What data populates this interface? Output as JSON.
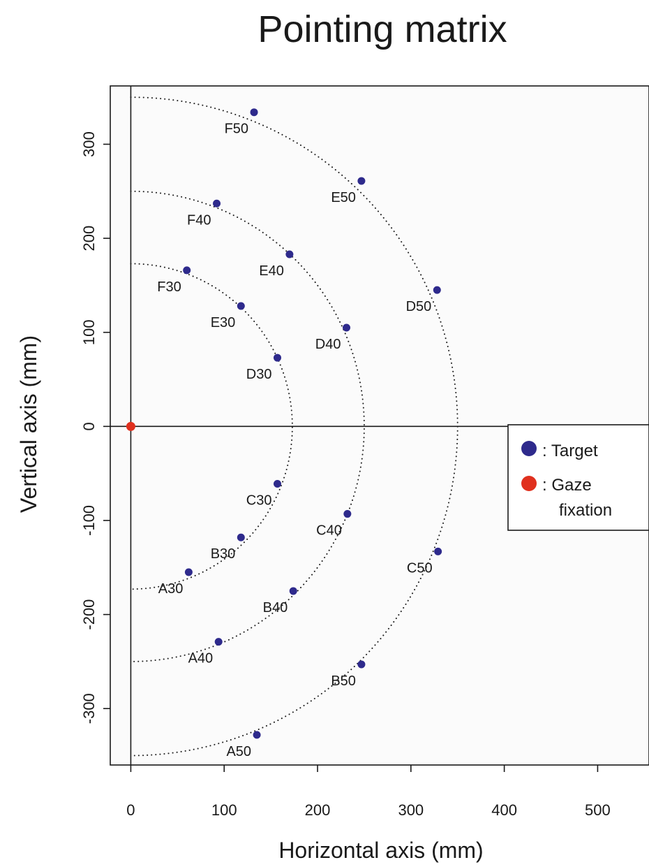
{
  "chart_data": {
    "type": "scatter",
    "title": "Pointing matrix",
    "xlabel": "Horizontal axis (mm)",
    "ylabel": "Vertical axis (mm)",
    "xlim": [
      -22,
      555
    ],
    "ylim": [
      -360,
      362
    ],
    "xticks": [
      0,
      100,
      200,
      300,
      400,
      500
    ],
    "yticks": [
      -300,
      -200,
      -100,
      0,
      100,
      200,
      300
    ],
    "grid": false,
    "reference_lines": {
      "x": 0,
      "y": 0
    },
    "arcs": [
      {
        "radius": 173
      },
      {
        "radius": 250
      },
      {
        "radius": 350
      }
    ],
    "series": [
      {
        "name": "Target",
        "color": "#2e2a8c",
        "points": [
          {
            "label": "F50",
            "x": 132,
            "y": 334
          },
          {
            "label": "E50",
            "x": 247,
            "y": 261
          },
          {
            "label": "D50",
            "x": 328,
            "y": 145
          },
          {
            "label": "C50",
            "x": 329,
            "y": -133
          },
          {
            "label": "B50",
            "x": 247,
            "y": -253
          },
          {
            "label": "A50",
            "x": 135,
            "y": -328
          },
          {
            "label": "F40",
            "x": 92,
            "y": 237
          },
          {
            "label": "E40",
            "x": 170,
            "y": 183
          },
          {
            "label": "D40",
            "x": 231,
            "y": 105
          },
          {
            "label": "C40",
            "x": 232,
            "y": -93
          },
          {
            "label": "B40",
            "x": 174,
            "y": -175
          },
          {
            "label": "A40",
            "x": 94,
            "y": -229
          },
          {
            "label": "F30",
            "x": 60,
            "y": 166
          },
          {
            "label": "E30",
            "x": 118,
            "y": 128
          },
          {
            "label": "D30",
            "x": 157,
            "y": 73
          },
          {
            "label": "C30",
            "x": 157,
            "y": -61
          },
          {
            "label": "B30",
            "x": 118,
            "y": -118
          },
          {
            "label": "A30",
            "x": 62,
            "y": -155
          }
        ]
      },
      {
        "name": "Gaze fixation",
        "color": "#e0301e",
        "points": [
          {
            "label": "",
            "x": 0,
            "y": 0
          }
        ]
      }
    ],
    "legend": {
      "position": "right",
      "entries": [
        {
          "symbol_color": "#2e2a8c",
          "line1": ": Target",
          "line2": ""
        },
        {
          "symbol_color": "#e0301e",
          "line1": ": Gaze",
          "line2": "fixation"
        }
      ]
    }
  }
}
